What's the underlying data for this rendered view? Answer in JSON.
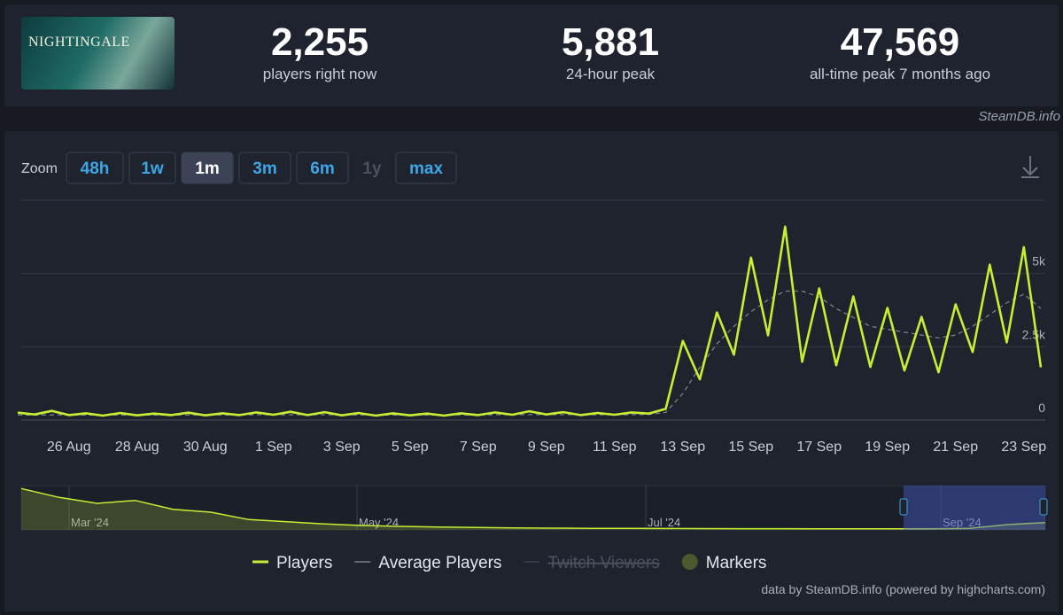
{
  "header": {
    "game": "NIGHTINGALE",
    "stats": [
      {
        "value": "2,255",
        "label": "players right now"
      },
      {
        "value": "5,881",
        "label": "24-hour peak"
      },
      {
        "value": "47,569",
        "label": "all-time peak 7 months ago"
      }
    ],
    "credit": "SteamDB.info"
  },
  "zoom": {
    "label": "Zoom",
    "buttons": [
      "48h",
      "1w",
      "1m",
      "3m",
      "6m",
      "1y",
      "max"
    ],
    "active": "1m",
    "disabled": "1y"
  },
  "chart_data": {
    "type": "line",
    "categories": [
      null,
      null,
      null,
      "26 Aug",
      null,
      null,
      null,
      "28 Aug",
      null,
      null,
      null,
      "30 Aug",
      null,
      null,
      null,
      "1 Sep",
      null,
      null,
      null,
      "3 Sep",
      null,
      null,
      null,
      "5 Sep",
      null,
      null,
      null,
      "7 Sep",
      null,
      null,
      null,
      "9 Sep",
      null,
      null,
      null,
      "11 Sep",
      null,
      null,
      null,
      "13 Sep",
      null,
      null,
      null,
      "15 Sep",
      null,
      null,
      null,
      "17 Sep",
      null,
      null,
      null,
      "19 Sep",
      null,
      null,
      null,
      "21 Sep",
      null,
      null,
      null,
      "23 Sep",
      null
    ],
    "series": [
      {
        "name": "Players",
        "color": "#c6ef34",
        "dashed": false,
        "values": [
          250,
          190,
          310,
          170,
          230,
          150,
          240,
          160,
          220,
          170,
          250,
          160,
          230,
          170,
          260,
          180,
          280,
          170,
          270,
          160,
          240,
          150,
          230,
          160,
          220,
          150,
          230,
          170,
          260,
          180,
          300,
          190,
          270,
          170,
          240,
          180,
          260,
          220,
          380,
          2700,
          1390,
          3670,
          2230,
          5540,
          2890,
          6600,
          1990,
          4490,
          1870,
          4220,
          1810,
          3830,
          1690,
          3520,
          1630,
          3950,
          2320,
          5300,
          2650,
          5900,
          1800
        ]
      },
      {
        "name": "Average Players",
        "color": "#7c8088",
        "dashed": true,
        "values": [
          170,
          170,
          175,
          175,
          170,
          170,
          170,
          170,
          170,
          170,
          175,
          175,
          175,
          175,
          180,
          180,
          180,
          180,
          180,
          180,
          175,
          175,
          170,
          170,
          170,
          170,
          175,
          175,
          180,
          180,
          185,
          185,
          185,
          185,
          180,
          180,
          185,
          190,
          260,
          900,
          1800,
          2600,
          3200,
          3700,
          4100,
          4400,
          4400,
          4200,
          3800,
          3500,
          3200,
          3100,
          3000,
          2900,
          2800,
          2900,
          3200,
          3600,
          4000,
          4300,
          3800
        ]
      }
    ],
    "inactive_legend": [
      "Twitch Viewers"
    ],
    "markers_legend": {
      "name": "Markers",
      "color": "#4a5a2c"
    },
    "ylim": [
      0,
      7500
    ],
    "yticks": [
      0,
      {
        "value": 2500,
        "label": "2.5k"
      },
      {
        "value": 5000,
        "label": "5k"
      }
    ],
    "grid": true,
    "navigator": {
      "labels": [
        "Mar '24",
        "May '24",
        "Jul '24",
        "Sep '24"
      ],
      "values": [
        14000,
        11000,
        9000,
        10000,
        7000,
        6000,
        3500,
        2800,
        2000,
        1500,
        1200,
        1000,
        800,
        700,
        600,
        550,
        500,
        480,
        450,
        430,
        420,
        400,
        400,
        380,
        370,
        500,
        1800,
        2500
      ],
      "ylim": [
        0,
        15000
      ]
    },
    "source": "data by SteamDB.info (powered by highcharts.com)"
  }
}
